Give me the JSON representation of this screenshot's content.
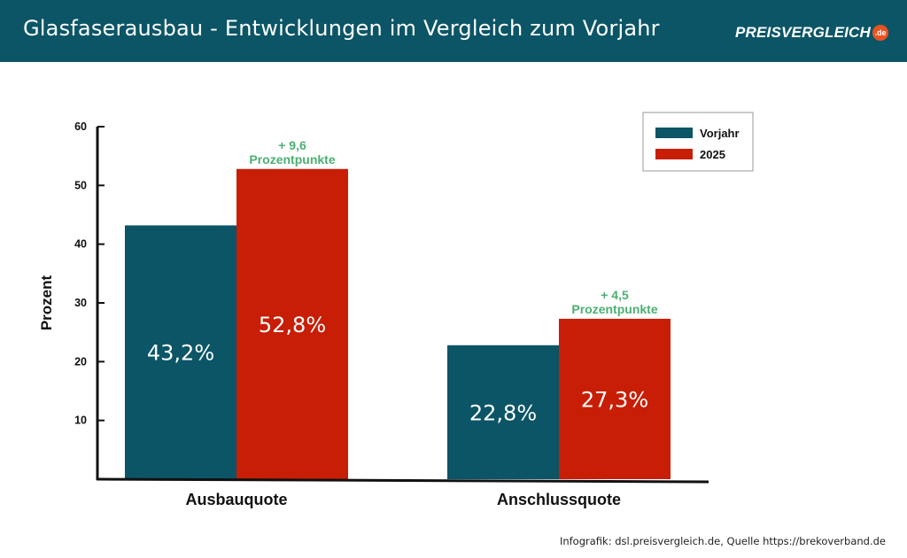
{
  "header": {
    "title": "Glasfaserausbau - Entwicklungen im Vergleich zum Vorjahr",
    "logo_text": "PREISVERGLEICH",
    "logo_badge": ".de"
  },
  "chart_data": {
    "type": "bar",
    "title": "",
    "xlabel": "",
    "ylabel": "Prozent",
    "ylim": [
      0,
      60
    ],
    "yticks": [
      "10",
      "20",
      "30",
      "40",
      "50",
      "60"
    ],
    "categories": [
      "Ausbauquote",
      "Anschlussquote"
    ],
    "series": [
      {
        "name": "Vorjahr",
        "color": "#0b5566",
        "values": [
          43.2,
          22.8
        ],
        "labels": [
          "43,2%",
          "22,8%"
        ]
      },
      {
        "name": "2025",
        "color": "#c81e05",
        "values": [
          52.8,
          27.3
        ],
        "labels": [
          "52,8%",
          "27,3%"
        ]
      }
    ],
    "annotations": [
      {
        "category": "Ausbauquote",
        "lines": [
          "+ 9,6",
          "Prozentpunkte"
        ],
        "color": "#4caf72"
      },
      {
        "category": "Anschlussquote",
        "lines": [
          "+ 4,5",
          "Prozentpunkte"
        ],
        "color": "#4caf72"
      }
    ],
    "legend": {
      "position": "top-right"
    },
    "grid": false
  },
  "footer": {
    "text": "Infografik: dsl.preisvergleich.de, Quelle https://brekoverband.de"
  }
}
